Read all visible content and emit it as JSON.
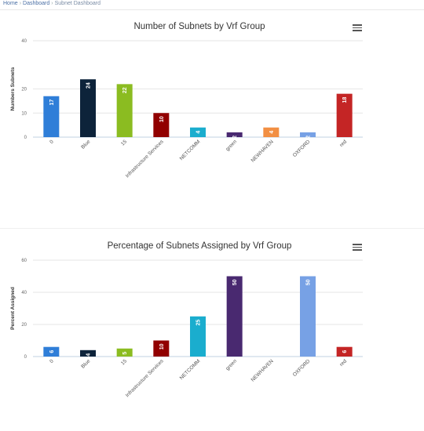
{
  "breadcrumb": {
    "items": [
      "Home",
      "Dashboard",
      "Subnet Dashboard"
    ],
    "separator": "›"
  },
  "menu_icon": "hamburger-icon",
  "chart_data": [
    {
      "type": "bar",
      "title": "Number of Subnets by Vrf Group",
      "xlabel": "",
      "ylabel": "Numbers Subnets",
      "ylim": [
        0,
        40
      ],
      "yticks": [
        0,
        10,
        20,
        40
      ],
      "grid": true,
      "categories": [
        "0",
        "Blue",
        "15",
        "Infrastructure Services",
        "NETCOMM",
        "green",
        "NEWHAVEN",
        "OXFORD",
        "red"
      ],
      "values": [
        17,
        24,
        22,
        10,
        4,
        2,
        4,
        2,
        18
      ],
      "data_labels": [
        "17",
        "24",
        "22",
        "10",
        "4",
        "2",
        "4",
        "2",
        "18"
      ],
      "colors": [
        "#2f7ed8",
        "#0d233a",
        "#8bbc21",
        "#910000",
        "#1aadce",
        "#492970",
        "#f28f43",
        "#77a1e5",
        "#c42525"
      ]
    },
    {
      "type": "bar",
      "title": "Percentage of Subnets Assigned by Vrf Group",
      "xlabel": "",
      "ylabel": "Percent Assigned",
      "ylim": [
        0,
        60
      ],
      "yticks": [
        0,
        20,
        40,
        60
      ],
      "grid": true,
      "categories": [
        "0",
        "Blue",
        "15",
        "Infrastructure Services",
        "NETCOMM",
        "green",
        "NEWHAVEN",
        "OXFORD",
        "red"
      ],
      "values": [
        6,
        4,
        5,
        10,
        25,
        50,
        0,
        50,
        6
      ],
      "data_labels": [
        "6",
        "4",
        "5",
        "10",
        "25",
        "50",
        "",
        "50",
        "6"
      ],
      "colors": [
        "#2f7ed8",
        "#0d233a",
        "#8bbc21",
        "#910000",
        "#1aadce",
        "#492970",
        "#f28f43",
        "#77a1e5",
        "#c42525"
      ]
    }
  ]
}
